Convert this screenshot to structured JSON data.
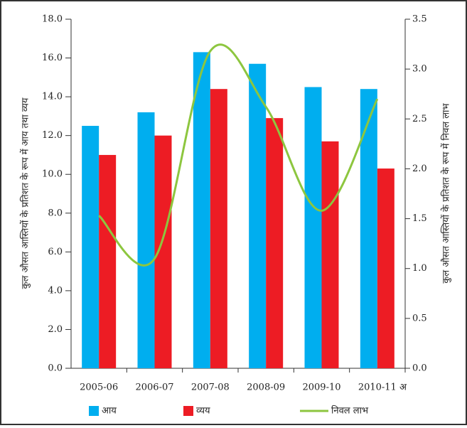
{
  "chart_data": {
    "type": "bar-line",
    "categories": [
      "2005-06",
      "2006-07",
      "2007-08",
      "2008-09",
      "2009-10",
      "2010-11"
    ],
    "x_label": "अ",
    "y_label": "कुल औसत आस्तियों के प्रतिशत के रूप में आय तथा व्यय",
    "y2_label": "कुल औसत आस्तियों के प्रतिशत के रूप में निवल लाभ",
    "ylim": [
      0,
      18
    ],
    "yticks": [
      {
        "value": 0,
        "label": "0.0"
      },
      {
        "value": 2,
        "label": "2.0"
      },
      {
        "value": 4,
        "label": "4.0"
      },
      {
        "value": 6,
        "label": "6.0"
      },
      {
        "value": 8,
        "label": "8.0"
      },
      {
        "value": 10,
        "label": "10.0"
      },
      {
        "value": 12,
        "label": "12.0"
      },
      {
        "value": 14,
        "label": "14.0"
      },
      {
        "value": 16,
        "label": "16.0"
      },
      {
        "value": 18,
        "label": "18.0"
      }
    ],
    "y2lim": [
      0,
      3.5
    ],
    "y2ticks": [
      {
        "value": 0,
        "label": "0.0"
      },
      0.5,
      {
        "value": 1,
        "label": "1.0"
      },
      1.5,
      {
        "value": 2,
        "label": "2.0"
      },
      2.5,
      {
        "value": 3,
        "label": "3.0"
      },
      3.5
    ],
    "series": [
      {
        "name": "आय",
        "color": "#00aeef",
        "values": [
          12.5,
          13.2,
          16.3,
          15.7,
          14.5,
          14.4
        ]
      },
      {
        "name": "व्यय",
        "color": "#ed1c24",
        "values": [
          11.0,
          12.0,
          14.4,
          12.9,
          11.7,
          10.3
        ]
      },
      {
        "name": "निवल लाभ",
        "color": "#8dc63f",
        "axis": "y2",
        "type": "line",
        "values": [
          1.53,
          1.1,
          3.18,
          2.62,
          1.58,
          2.7
        ]
      }
    ]
  }
}
